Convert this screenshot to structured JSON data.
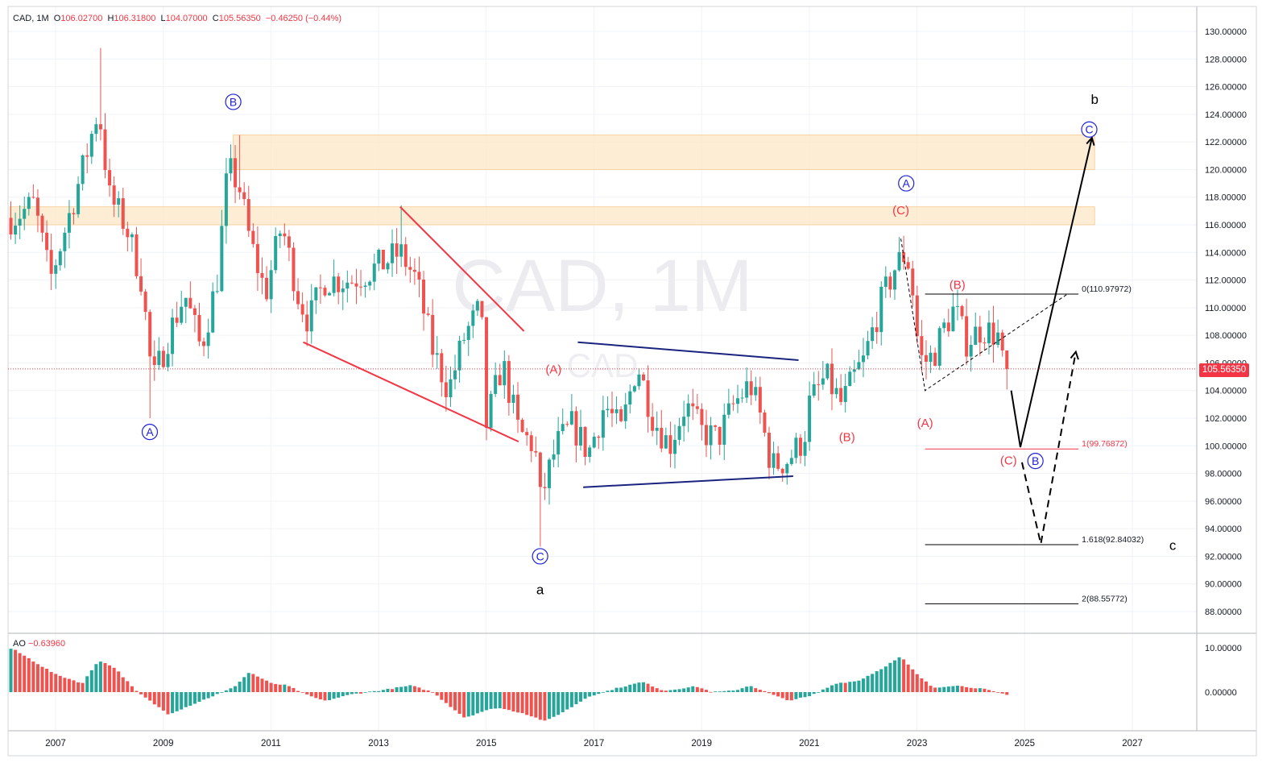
{
  "legend": {
    "symbol": "CAD, 1M",
    "open_label": "O",
    "open": "106.02700",
    "high_label": "H",
    "high": "106.31800",
    "low_label": "L",
    "low": "104.07000",
    "close_label": "C",
    "close": "105.56350",
    "change": "−0.46250 (−0.44%)"
  },
  "watermark": {
    "main": "CAD, 1M",
    "sub": "CAD"
  },
  "last_price": "105.56350",
  "ao_legend": {
    "name": "AO",
    "value": "−0.63960"
  },
  "colors": {
    "up": "#26a69a",
    "down": "#ef5350",
    "wave_blue": "#1e22d6",
    "wave_red": "#f23645",
    "zone": "#fde7c7",
    "trend_blue": "#1a237e"
  },
  "chart_data": [
    {
      "type": "candlestick",
      "title": "CAD, 1M",
      "xlabel": "",
      "ylabel": "",
      "x_ticks": [
        "2007",
        "2009",
        "2011",
        "2013",
        "2015",
        "2017",
        "2019",
        "2021",
        "2023",
        "2025",
        "2027"
      ],
      "y_ticks": [
        "88.00000",
        "90.00000",
        "92.00000",
        "94.00000",
        "96.00000",
        "98.00000",
        "100.00000",
        "102.00000",
        "104.00000",
        "106.00000",
        "108.00000",
        "110.00000",
        "112.00000",
        "114.00000",
        "116.00000",
        "118.00000",
        "120.00000",
        "122.00000",
        "124.00000",
        "126.00000",
        "128.00000",
        "130.00000"
      ],
      "ylim": [
        86.7,
        131.5
      ],
      "xlim": [
        2006.15,
        2028.2
      ],
      "anchors": [
        [
          2006.2,
          116.5
        ],
        [
          2006.6,
          117.5
        ],
        [
          2006.9,
          112.0
        ],
        [
          2007.2,
          116.0
        ],
        [
          2007.5,
          120.0
        ],
        [
          2007.8,
          124.5
        ],
        [
          2008.0,
          118.0
        ],
        [
          2008.3,
          116.0
        ],
        [
          2008.6,
          112.0
        ],
        [
          2008.8,
          104.5
        ],
        [
          2009.1,
          108.0
        ],
        [
          2009.4,
          111.0
        ],
        [
          2009.7,
          107.0
        ],
        [
          2010.0,
          112.0
        ],
        [
          2010.2,
          120.0
        ],
        [
          2010.4,
          119.0
        ],
        [
          2010.6,
          115.0
        ],
        [
          2010.9,
          111.0
        ],
        [
          2011.2,
          116.0
        ],
        [
          2011.5,
          111.0
        ],
        [
          2011.7,
          109.0
        ],
        [
          2012.0,
          112.0
        ],
        [
          2012.5,
          112.0
        ],
        [
          2013.0,
          113.0
        ],
        [
          2013.4,
          114.0
        ],
        [
          2013.7,
          112.0
        ],
        [
          2014.0,
          107.0
        ],
        [
          2014.3,
          104.0
        ],
        [
          2014.6,
          108.0
        ],
        [
          2014.9,
          110.0
        ],
        [
          2015.0,
          101.5
        ],
        [
          2015.3,
          106.0
        ],
        [
          2015.6,
          101.0
        ],
        [
          2015.9,
          100.0
        ],
        [
          2016.0,
          96.0
        ],
        [
          2016.3,
          100.0
        ],
        [
          2016.6,
          101.5
        ],
        [
          2016.9,
          99.5
        ],
        [
          2017.2,
          103.0
        ],
        [
          2017.5,
          101.0
        ],
        [
          2017.8,
          106.0
        ],
        [
          2018.1,
          102.0
        ],
        [
          2018.4,
          100.0
        ],
        [
          2018.7,
          103.0
        ],
        [
          2019.0,
          101.0
        ],
        [
          2019.3,
          100.5
        ],
        [
          2019.6,
          103.0
        ],
        [
          2019.9,
          104.5
        ],
        [
          2020.1,
          102.0
        ],
        [
          2020.3,
          98.5
        ],
        [
          2020.6,
          99.0
        ],
        [
          2020.9,
          100.5
        ],
        [
          2021.0,
          103.0
        ],
        [
          2021.3,
          105.0
        ],
        [
          2021.6,
          103.0
        ],
        [
          2021.9,
          105.5
        ],
        [
          2022.0,
          106.0
        ],
        [
          2022.3,
          110.0
        ],
        [
          2022.6,
          113.0
        ],
        [
          2022.8,
          114.0
        ],
        [
          2022.9,
          112.0
        ],
        [
          2023.0,
          108.0
        ],
        [
          2023.1,
          106.0
        ],
        [
          2023.3,
          106.5
        ],
        [
          2023.5,
          108.5
        ],
        [
          2023.7,
          110.0
        ],
        [
          2023.9,
          107.5
        ],
        [
          2024.2,
          108.5
        ],
        [
          2024.5,
          108.0
        ],
        [
          2024.58,
          106.0
        ],
        [
          2024.67,
          105.56
        ]
      ],
      "ao_ylim": [
        -2.8,
        12.0
      ],
      "ao_ticks": [
        "10.00000",
        "0.00000"
      ],
      "ao_anchors": [
        [
          2006.2,
          9.8
        ],
        [
          2007.0,
          4.0
        ],
        [
          2007.5,
          2.0
        ],
        [
          2007.8,
          7.2
        ],
        [
          2008.1,
          5.5
        ],
        [
          2008.5,
          0.2
        ],
        [
          2009.1,
          -5.0
        ],
        [
          2009.4,
          -3.5
        ],
        [
          2009.8,
          -1.5
        ],
        [
          2010.3,
          1.0
        ],
        [
          2010.6,
          4.5
        ],
        [
          2011.0,
          2.0
        ],
        [
          2011.3,
          1.5
        ],
        [
          2011.7,
          -0.8
        ],
        [
          2012.0,
          -2.0
        ],
        [
          2012.5,
          -0.5
        ],
        [
          2013.1,
          0.5
        ],
        [
          2013.6,
          1.5
        ],
        [
          2014.0,
          0.0
        ],
        [
          2014.6,
          -5.8
        ],
        [
          2014.9,
          -4.5
        ],
        [
          2015.2,
          -3.5
        ],
        [
          2015.7,
          -4.8
        ],
        [
          2016.1,
          -6.6
        ],
        [
          2016.5,
          -4.0
        ],
        [
          2016.9,
          -1.0
        ],
        [
          2017.4,
          0.8
        ],
        [
          2017.9,
          2.3
        ],
        [
          2018.3,
          0.3
        ],
        [
          2018.9,
          1.3
        ],
        [
          2019.2,
          0.0
        ],
        [
          2019.6,
          0.3
        ],
        [
          2019.9,
          1.5
        ],
        [
          2020.3,
          -0.5
        ],
        [
          2020.6,
          -1.9
        ],
        [
          2021.0,
          -1.0
        ],
        [
          2021.5,
          2.0
        ],
        [
          2021.9,
          2.5
        ],
        [
          2022.3,
          5.0
        ],
        [
          2022.7,
          8.0
        ],
        [
          2023.0,
          4.0
        ],
        [
          2023.3,
          1.0
        ],
        [
          2023.7,
          1.5
        ],
        [
          2024.2,
          0.8
        ],
        [
          2024.67,
          -0.64
        ]
      ],
      "zones": [
        {
          "x0": 2010.3,
          "x1": 2026.3,
          "y0": 120.0,
          "y1": 122.5
        },
        {
          "x0": 2006.15,
          "x1": 2026.3,
          "y0": 116.0,
          "y1": 117.3
        }
      ],
      "fib_levels": [
        {
          "label": "0(110.97972)",
          "value": 110.98,
          "x0": 2023.15,
          "x1": 2026.0
        },
        {
          "label": "1(99.76872)",
          "value": 99.77,
          "x0": 2023.15,
          "x1": 2026.0
        },
        {
          "label": "1.618(92.84032)",
          "value": 92.84,
          "x0": 2023.15,
          "x1": 2026.0
        },
        {
          "label": "2(88.55772)",
          "value": 88.56,
          "x0": 2023.15,
          "x1": 2026.0
        }
      ],
      "wave_labels": [
        {
          "text": "A",
          "circled": true,
          "color": "blue",
          "x": 2008.75,
          "y": 101.0
        },
        {
          "text": "B",
          "circled": true,
          "color": "blue",
          "x": 2010.3,
          "y": 124.9
        },
        {
          "text": "C",
          "circled": true,
          "color": "blue",
          "x": 2016.0,
          "y": 92.0
        },
        {
          "text": "a",
          "circled": false,
          "color": "black",
          "x": 2016.0,
          "y": 89.6
        },
        {
          "text": "(A)",
          "circled": false,
          "color": "red",
          "x": 2016.25,
          "y": 105.6
        },
        {
          "text": "(B)",
          "circled": false,
          "color": "red",
          "x": 2021.7,
          "y": 100.7
        },
        {
          "text": "(C)",
          "circled": false,
          "color": "red",
          "x": 2022.7,
          "y": 117.1
        },
        {
          "text": "A",
          "circled": true,
          "color": "blue",
          "x": 2022.8,
          "y": 119.0
        },
        {
          "text": "(B)",
          "circled": false,
          "color": "red",
          "x": 2023.75,
          "y": 111.7
        },
        {
          "text": "(A)",
          "circled": false,
          "color": "red",
          "x": 2023.15,
          "y": 101.7
        },
        {
          "text": "(C)",
          "circled": false,
          "color": "red",
          "x": 2024.7,
          "y": 99.0
        },
        {
          "text": "B",
          "circled": true,
          "color": "blue",
          "x": 2025.2,
          "y": 98.9
        },
        {
          "text": "b",
          "circled": false,
          "color": "black",
          "x": 2026.3,
          "y": 125.1
        },
        {
          "text": "C",
          "circled": true,
          "color": "blue",
          "x": 2026.2,
          "y": 122.9
        },
        {
          "text": "c",
          "circled": false,
          "color": "black",
          "x": 2027.75,
          "y": 92.8
        }
      ]
    }
  ]
}
